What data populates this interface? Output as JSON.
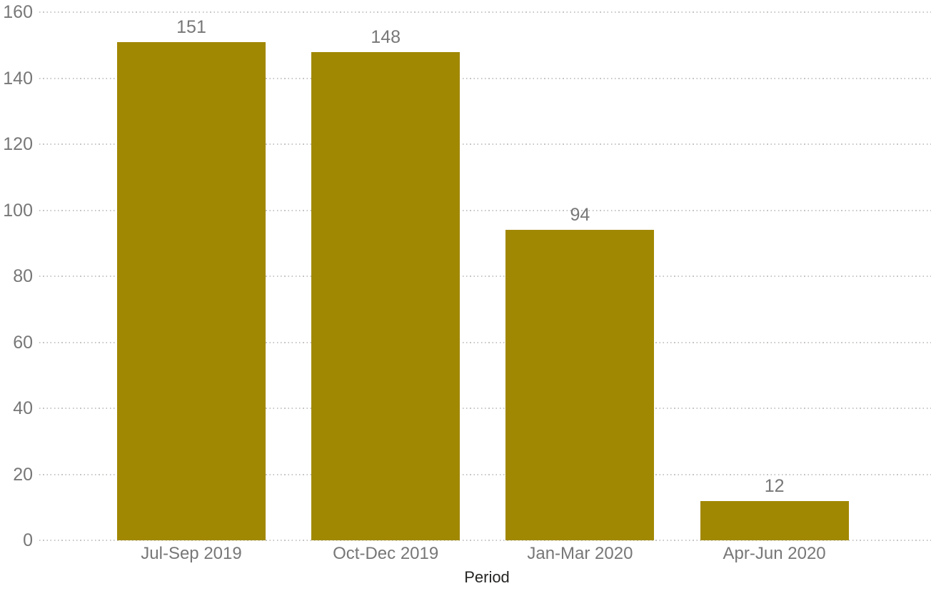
{
  "chart_data": {
    "type": "bar",
    "title": "",
    "xlabel": "Period",
    "ylabel": "",
    "categories": [
      "Jul-Sep 2019",
      "Oct-Dec 2019",
      "Jan-Mar 2020",
      "Apr-Jun 2020"
    ],
    "values": [
      151,
      148,
      94,
      12
    ],
    "data_labels_shown": true,
    "ylim": [
      0,
      160
    ],
    "ytick_step": 20,
    "ytick_labels": [
      "0",
      "20",
      "40",
      "60",
      "80",
      "100",
      "120",
      "140",
      "160"
    ],
    "grid": "horizontal-dotted",
    "legend_position": "none",
    "colors": {
      "bar": "#a18803",
      "axis_tick_label": "#777777",
      "data_label": "#777777",
      "axis_title": "#252423",
      "gridline": "#c8c6c4",
      "background": "#ffffff"
    }
  }
}
